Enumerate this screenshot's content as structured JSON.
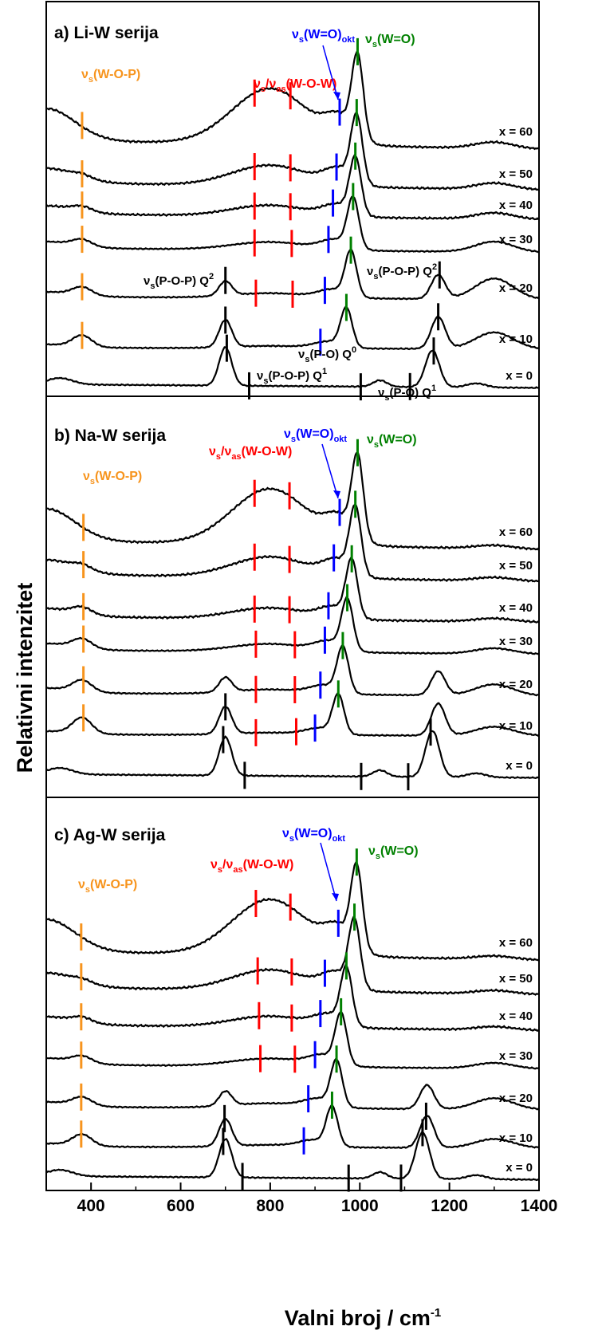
{
  "figure": {
    "ylabel": "Relativni intenzitet",
    "xlabel_main": "Valni broj / cm",
    "xlabel_sup": "-1",
    "x_ticks": [
      "400",
      "600",
      "800",
      "1000",
      "1200",
      "1400"
    ]
  },
  "colors": {
    "trace": "#000000",
    "wop": "#f7941d",
    "wow": "#ff0000",
    "wo_okt": "#0000ff",
    "wo_term": "#008000"
  },
  "chart_data": [
    {
      "type": "line",
      "title": "a) Li-W serija",
      "xlim": [
        300,
        1400
      ],
      "series_labels": [
        "x = 60",
        "x = 50",
        "x = 40",
        "x = 30",
        "x = 20",
        "x = 10",
        "x = 0"
      ],
      "peaks": {
        "x = 60": [
          {
            "x": 380,
            "band": "W-O-P"
          },
          {
            "x": 765,
            "band": "W-O-W"
          },
          {
            "x": 845,
            "band": "W-O-W"
          },
          {
            "x": 955,
            "band": "W=O okt"
          },
          {
            "x": 995,
            "band": "W=O"
          }
        ],
        "x = 50": [
          {
            "x": 380,
            "band": "W-O-P"
          },
          {
            "x": 765,
            "band": "W-O-W"
          },
          {
            "x": 845,
            "band": "W-O-W"
          },
          {
            "x": 948,
            "band": "W=O okt"
          },
          {
            "x": 993,
            "band": "W=O"
          }
        ],
        "x = 40": [
          {
            "x": 380,
            "band": "W-O-P"
          },
          {
            "x": 765,
            "band": "W-O-W"
          },
          {
            "x": 845,
            "band": "W-O-W"
          },
          {
            "x": 940,
            "band": "W=O okt"
          },
          {
            "x": 990,
            "band": "W=O"
          }
        ],
        "x = 30": [
          {
            "x": 380,
            "band": "W-O-P"
          },
          {
            "x": 765,
            "band": "W-O-W"
          },
          {
            "x": 848,
            "band": "W-O-W"
          },
          {
            "x": 930,
            "band": "W=O okt"
          },
          {
            "x": 985,
            "band": "W=O"
          }
        ],
        "x = 20": [
          {
            "x": 380,
            "band": "W-O-P"
          },
          {
            "x": 700,
            "band": "P-O-P"
          },
          {
            "x": 768,
            "band": "W-O-W"
          },
          {
            "x": 850,
            "band": "W-O-W"
          },
          {
            "x": 922,
            "band": "W=O okt"
          },
          {
            "x": 980,
            "band": "W=O"
          },
          {
            "x": 1178,
            "band": "P-O-P"
          }
        ],
        "x = 10": [
          {
            "x": 380,
            "band": "W-O-P"
          },
          {
            "x": 700,
            "band": "P-O-P"
          },
          {
            "x": 912,
            "band": "W=O okt"
          },
          {
            "x": 970,
            "band": "W=O"
          },
          {
            "x": 1175,
            "band": "P-O-P"
          }
        ],
        "x = 0": [
          {
            "x": 703,
            "band": "P-O-P"
          },
          {
            "x": 753,
            "band": "P-O-P"
          },
          {
            "x": 1002,
            "band": "P-O"
          },
          {
            "x": 1112,
            "band": "P-O"
          },
          {
            "x": 1165,
            "band": "P-O"
          }
        ]
      }
    },
    {
      "type": "line",
      "title": "b) Na-W serija",
      "xlim": [
        300,
        1400
      ],
      "series_labels": [
        "x = 60",
        "x = 50",
        "x = 40",
        "x = 30",
        "x = 20",
        "x = 10",
        "x = 0"
      ],
      "peaks": {
        "x = 60": [
          {
            "x": 383,
            "band": "W-O-P"
          },
          {
            "x": 765,
            "band": "W-O-W"
          },
          {
            "x": 843,
            "band": "W-O-W"
          },
          {
            "x": 955,
            "band": "W=O okt"
          },
          {
            "x": 995,
            "band": "W=O"
          }
        ],
        "x = 50": [
          {
            "x": 383,
            "band": "W-O-P"
          },
          {
            "x": 765,
            "band": "W-O-W"
          },
          {
            "x": 843,
            "band": "W-O-W"
          },
          {
            "x": 942,
            "band": "W=O okt"
          },
          {
            "x": 990,
            "band": "W=O"
          }
        ],
        "x = 40": [
          {
            "x": 383,
            "band": "W-O-P"
          },
          {
            "x": 765,
            "band": "W-O-W"
          },
          {
            "x": 843,
            "band": "W-O-W"
          },
          {
            "x": 930,
            "band": "W=O okt"
          },
          {
            "x": 982,
            "band": "W=O"
          }
        ],
        "x = 30": [
          {
            "x": 383,
            "band": "W-O-P"
          },
          {
            "x": 768,
            "band": "W-O-W"
          },
          {
            "x": 855,
            "band": "W-O-W"
          },
          {
            "x": 922,
            "band": "W=O okt"
          },
          {
            "x": 972,
            "band": "W=O"
          }
        ],
        "x = 20": [
          {
            "x": 383,
            "band": "W-O-P"
          },
          {
            "x": 768,
            "band": "W-O-W"
          },
          {
            "x": 855,
            "band": "W-O-W"
          },
          {
            "x": 912,
            "band": "W=O okt"
          },
          {
            "x": 962,
            "band": "W=O"
          }
        ],
        "x = 10": [
          {
            "x": 383,
            "band": "W-O-P"
          },
          {
            "x": 700,
            "band": "P-O-P"
          },
          {
            "x": 768,
            "band": "W-O-W"
          },
          {
            "x": 858,
            "band": "W-O-W"
          },
          {
            "x": 900,
            "band": "W=O okt"
          },
          {
            "x": 952,
            "band": "W=O"
          }
        ],
        "x = 0": [
          {
            "x": 695,
            "band": "P-O-P"
          },
          {
            "x": 743,
            "band": "P-O-P"
          },
          {
            "x": 1003,
            "band": "P-O"
          },
          {
            "x": 1108,
            "band": "P-O"
          },
          {
            "x": 1158,
            "band": "P-O"
          }
        ]
      }
    },
    {
      "type": "line",
      "title": "c) Ag-W serija",
      "xlim": [
        300,
        1400
      ],
      "series_labels": [
        "x = 60",
        "x = 50",
        "x = 40",
        "x = 30",
        "x = 20",
        "x = 10",
        "x = 0"
      ],
      "peaks": {
        "x = 60": [
          {
            "x": 378,
            "band": "W-O-P"
          },
          {
            "x": 768,
            "band": "W-O-W"
          },
          {
            "x": 845,
            "band": "W-O-W"
          },
          {
            "x": 952,
            "band": "W=O okt"
          },
          {
            "x": 993,
            "band": "W=O"
          }
        ],
        "x = 50": [
          {
            "x": 378,
            "band": "W-O-P"
          },
          {
            "x": 772,
            "band": "W-O-W"
          },
          {
            "x": 848,
            "band": "W-O-W"
          },
          {
            "x": 922,
            "band": "W=O okt"
          },
          {
            "x": 988,
            "band": "W=O"
          }
        ],
        "x = 40": [
          {
            "x": 378,
            "band": "W-O-P"
          },
          {
            "x": 775,
            "band": "W-O-W"
          },
          {
            "x": 848,
            "band": "W-O-W"
          },
          {
            "x": 912,
            "band": "W=O okt"
          },
          {
            "x": 970,
            "band": "W=O"
          }
        ],
        "x = 30": [
          {
            "x": 378,
            "band": "W-O-P"
          },
          {
            "x": 778,
            "band": "W-O-W"
          },
          {
            "x": 855,
            "band": "W-O-W"
          },
          {
            "x": 900,
            "band": "W=O okt"
          },
          {
            "x": 958,
            "band": "W=O"
          }
        ],
        "x = 20": [
          {
            "x": 378,
            "band": "W-O-P"
          },
          {
            "x": 885,
            "band": "W=O okt"
          },
          {
            "x": 948,
            "band": "W=O"
          }
        ],
        "x = 10": [
          {
            "x": 378,
            "band": "W-O-P"
          },
          {
            "x": 698,
            "band": "P-O-P"
          },
          {
            "x": 875,
            "band": "W=O okt"
          },
          {
            "x": 938,
            "band": "W=O"
          },
          {
            "x": 1148,
            "band": "P-O"
          }
        ],
        "x = 0": [
          {
            "x": 695,
            "band": "P-O-P"
          },
          {
            "x": 738,
            "band": "P-O-P"
          },
          {
            "x": 975,
            "band": "P-O"
          },
          {
            "x": 1092,
            "band": "P-O"
          },
          {
            "x": 1140,
            "band": "P-O"
          }
        ]
      }
    }
  ],
  "annotations": {
    "wop": {
      "sym": "ν",
      "sub": "s",
      "rest": "(W-O-P)"
    },
    "wow": {
      "sym1": "ν",
      "sub1": "s",
      "slash": "/",
      "sym2": "ν",
      "sub2": "as",
      "rest": "(W-O-W)"
    },
    "wo_okt": {
      "sym": "ν",
      "sub": "s",
      "rest": "(W=O)",
      "sub2": "okt"
    },
    "wo_term": {
      "sym": "ν",
      "sub": "s",
      "rest": "(W=O)"
    },
    "pop_q2_left": {
      "sym": "ν",
      "sub": "s",
      "rest": "(P-O-P) Q",
      "sup": "2"
    },
    "pop_q2_right": {
      "sym": "ν",
      "sub": "s",
      "rest": "(P-O-P) Q",
      "sup": "2"
    },
    "po_q0": {
      "sym": "ν",
      "sub": "s",
      "rest": "(P-O) Q",
      "sup": "0"
    },
    "pop_q1": {
      "sym": "ν",
      "sub": "s",
      "rest": "(P-O-P) Q",
      "sup": "1"
    },
    "po_q1": {
      "sym": "ν",
      "sub": "s",
      "rest": "(P-O) Q",
      "sup": "1"
    }
  }
}
